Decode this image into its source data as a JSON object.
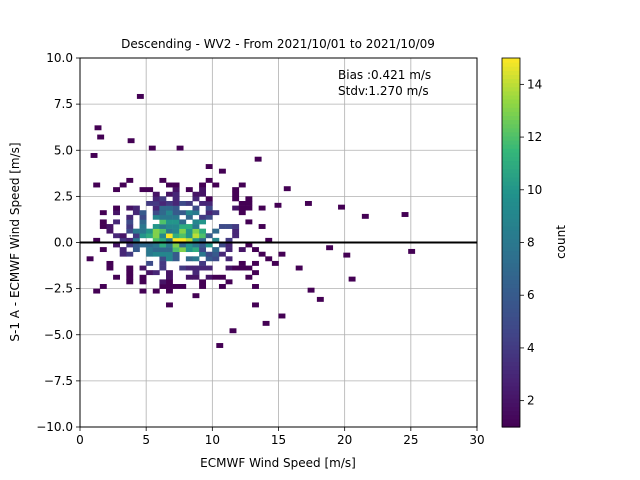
{
  "chart_data": {
    "type": "heatmap",
    "title": "Descending - WV2 - From 2021/10/01 to 2021/10/09",
    "xlabel": "ECMWF Wind Speed [m/s]",
    "ylabel": "S-1 A - ECMWF Wind Speed [m/s]",
    "xlim": [
      0,
      30
    ],
    "ylim": [
      -10,
      10
    ],
    "xticks": [
      "0",
      "5",
      "10",
      "15",
      "20",
      "25",
      "30"
    ],
    "yticks": [
      "10.0",
      "7.5",
      "5.0",
      "2.5",
      "0.0",
      "−2.5",
      "−5.0",
      "−7.5",
      "−10.0"
    ],
    "xtick_values": [
      0,
      5,
      10,
      15,
      20,
      25,
      30
    ],
    "ytick_values": [
      10,
      7.5,
      5,
      2.5,
      0,
      -2.5,
      -5,
      -7.5,
      -10
    ],
    "grid": true,
    "reference_line_y": 0,
    "annotation": {
      "bias": "Bias :0.421 m/s",
      "stdv": "Stdv:1.270 m/s"
    },
    "colorbar": {
      "label": "count",
      "range": [
        1,
        15
      ],
      "ticks": [
        "2",
        "4",
        "6",
        "8",
        "10",
        "12",
        "14"
      ],
      "tick_values": [
        2,
        4,
        6,
        8,
        10,
        12,
        14
      ],
      "colormap": "viridis"
    },
    "bin_size": [
      0.5,
      0.25
    ],
    "density": {
      "center_x": 7.4,
      "center_y": 0.4,
      "sigma_x": 2.7,
      "sigma_y": 1.2,
      "peak_count": 14
    },
    "outliers": [
      [
        4.3,
        7.8
      ],
      [
        1.1,
        6.1
      ],
      [
        1.3,
        5.6
      ],
      [
        5.2,
        5.0
      ],
      [
        7.3,
        5.0
      ],
      [
        3.6,
        5.4
      ],
      [
        13.2,
        4.4
      ],
      [
        0.8,
        4.6
      ],
      [
        24.3,
        1.4
      ],
      [
        21.3,
        1.3
      ],
      [
        19.5,
        1.8
      ],
      [
        24.8,
        -0.6
      ],
      [
        20.3,
        -2.1
      ],
      [
        17.9,
        -3.2
      ],
      [
        15.0,
        -4.1
      ],
      [
        13.8,
        -4.5
      ],
      [
        11.3,
        -4.9
      ],
      [
        10.3,
        -5.7
      ],
      [
        17.2,
        -2.7
      ],
      [
        16.3,
        -1.5
      ],
      [
        18.6,
        -0.4
      ],
      [
        19.9,
        -0.8
      ],
      [
        15.4,
        2.8
      ],
      [
        14.7,
        1.9
      ]
    ]
  }
}
